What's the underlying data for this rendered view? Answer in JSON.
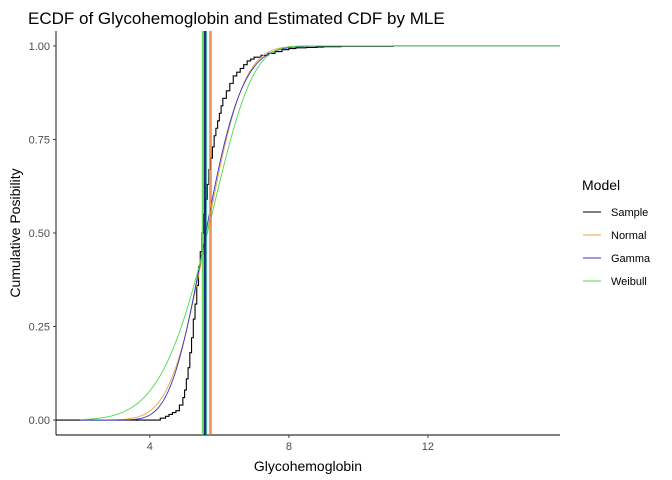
{
  "chart_data": {
    "type": "line",
    "title": "ECDF of Glycohemoglobin and Estimated CDF by MLE",
    "xlabel": "Glycohemoglobin",
    "ylabel": "Cumulative Posibility",
    "xlim": [
      1.3,
      15.8
    ],
    "ylim": [
      -0.04,
      1.04
    ],
    "x_ticks": [
      4,
      8,
      12
    ],
    "x_tick_labels": [
      "4",
      "8",
      "12"
    ],
    "y_ticks": [
      0,
      0.25,
      0.5,
      0.75,
      1
    ],
    "y_tick_labels": [
      "0.00",
      "0.25",
      "0.50",
      "0.75",
      "1.00"
    ],
    "grid": false,
    "legend": {
      "title": "Model",
      "position": "right"
    },
    "series": [
      {
        "name": "Sample",
        "color": "#000000",
        "kind": "step",
        "x": [
          1.3,
          4.3,
          4.45,
          4.55,
          4.65,
          4.75,
          4.85,
          4.95,
          5.0,
          5.05,
          5.1,
          5.15,
          5.2,
          5.25,
          5.3,
          5.35,
          5.4,
          5.45,
          5.5,
          5.55,
          5.6,
          5.65,
          5.7,
          5.75,
          5.8,
          5.85,
          5.9,
          5.95,
          6.0,
          6.05,
          6.1,
          6.2,
          6.3,
          6.4,
          6.5,
          6.6,
          6.7,
          6.8,
          6.9,
          7.0,
          7.2,
          7.4,
          7.6,
          7.8,
          8.0,
          8.2,
          8.5,
          8.8,
          9.0,
          9.5,
          10.0,
          11.0,
          12.0,
          13.0,
          14.5,
          15.8
        ],
        "y": [
          0.0,
          0.005,
          0.01,
          0.015,
          0.02,
          0.025,
          0.04,
          0.06,
          0.08,
          0.11,
          0.14,
          0.18,
          0.22,
          0.27,
          0.31,
          0.36,
          0.41,
          0.45,
          0.5,
          0.55,
          0.59,
          0.63,
          0.67,
          0.7,
          0.73,
          0.76,
          0.78,
          0.8,
          0.82,
          0.84,
          0.86,
          0.88,
          0.9,
          0.92,
          0.93,
          0.94,
          0.95,
          0.96,
          0.965,
          0.97,
          0.975,
          0.98,
          0.985,
          0.99,
          0.993,
          0.995,
          0.996,
          0.997,
          0.998,
          0.999,
          0.999,
          1.0,
          1.0,
          1.0,
          1.0,
          1.0
        ]
      },
      {
        "name": "Normal",
        "color": "#e8a53c",
        "kind": "normal",
        "mean": 5.64,
        "sd": 0.83
      },
      {
        "name": "Gamma",
        "color": "#3333cc",
        "kind": "gamma",
        "shape": 48,
        "rate": 8.5
      },
      {
        "name": "Weibull",
        "color": "#4dd94d",
        "kind": "weibull",
        "shape": 6.2,
        "scale": 6.0
      }
    ],
    "vlines": [
      {
        "name": "Weibull",
        "x": 5.51,
        "color": "#4dd94d"
      },
      {
        "name": "Gamma",
        "x": 5.56,
        "color": "#3333cc"
      },
      {
        "name": "Sample",
        "x": 5.59,
        "color": "#000000"
      },
      {
        "name": "Sample",
        "x": 5.62,
        "color": "#008b8b"
      },
      {
        "name": "Normal",
        "x": 5.72,
        "color": "#e8a53c"
      },
      {
        "name": "Normal",
        "x": 5.76,
        "color": "#e05a20"
      }
    ]
  }
}
